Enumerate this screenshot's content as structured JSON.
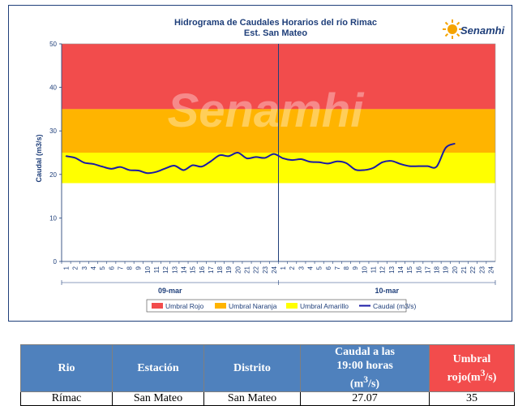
{
  "chart_data": {
    "type": "line",
    "title": "Hidrograma de Caudales Horarios del río Rimac",
    "subtitle": "Est. San Mateo",
    "brand": "Senamhi",
    "watermark": "Senamhi",
    "ylabel": "Caudal  (m3/s)",
    "ylim": [
      0,
      50
    ],
    "yticks": [
      0,
      10,
      20,
      30,
      40,
      50
    ],
    "x_tick_labels": [
      "1",
      "2",
      "3",
      "4",
      "5",
      "6",
      "7",
      "8",
      "9",
      "10",
      "11",
      "12",
      "13",
      "14",
      "15",
      "16",
      "17",
      "18",
      "19",
      "20",
      "21",
      "22",
      "23",
      "24",
      "1",
      "2",
      "3",
      "4",
      "5",
      "6",
      "7",
      "8",
      "9",
      "10",
      "11",
      "12",
      "13",
      "14",
      "15",
      "16",
      "17",
      "18",
      "19",
      "20",
      "21",
      "22",
      "23",
      "24"
    ],
    "day_groups": [
      "09-mar",
      "10-mar"
    ],
    "bands": [
      {
        "name": "Umbral Rojo",
        "from": 35,
        "to": 50,
        "color": "#f24c4c"
      },
      {
        "name": "Umbral Naranja",
        "from": 25,
        "to": 35,
        "color": "#ffb400"
      },
      {
        "name": "Umbral Amarillo",
        "from": 18,
        "to": 25,
        "color": "#ffff00"
      }
    ],
    "series": [
      {
        "name": "Caudal (m3/s)",
        "color": "#1a1aa6",
        "values": [
          24.2,
          23.8,
          22.7,
          22.4,
          21.8,
          21.3,
          21.7,
          21.0,
          20.9,
          20.3,
          20.6,
          21.4,
          22.0,
          21.0,
          22.1,
          21.8,
          23.0,
          24.4,
          24.2,
          25.0,
          23.7,
          24.0,
          23.8,
          24.7,
          23.7,
          23.3,
          23.5,
          22.9,
          22.8,
          22.5,
          23.0,
          22.6,
          21.1,
          21.0,
          21.5,
          22.8,
          23.1,
          22.4,
          21.9,
          21.9,
          21.9,
          21.8,
          26.1,
          27.07
        ]
      }
    ],
    "legend_position": "bottom",
    "grid": false
  },
  "summary_table": {
    "headers": {
      "rio": "Rio",
      "estacion": "Estación",
      "distrito": "Distrito",
      "caudal_line1": "Caudal a las",
      "caudal_line2": "19:00 horas",
      "caudal_unit": "(m",
      "caudal_sup": "3",
      "caudal_unit_end": "/s)",
      "umbral_line1": "Umbral",
      "umbral_line2": "rojo(m",
      "umbral_sup": "3",
      "umbral_end": "/s)"
    },
    "row": {
      "rio": "Rímac",
      "estacion": "San Mateo",
      "distrito": "San Mateo",
      "caudal": "27.07",
      "umbral": "35"
    }
  }
}
